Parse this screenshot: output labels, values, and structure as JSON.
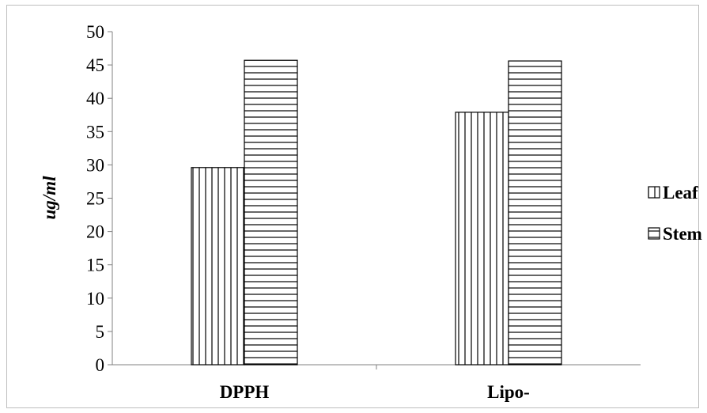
{
  "chart_data": {
    "type": "bar",
    "categories": [
      "DPPH",
      "Lipo-"
    ],
    "series": [
      {
        "name": "Leaf",
        "values": [
          29.6,
          37.9
        ],
        "pattern": "vertical-lines"
      },
      {
        "name": "Stem",
        "values": [
          45.7,
          45.6
        ],
        "pattern": "horizontal-lines"
      }
    ],
    "title": "",
    "xlabel": "",
    "ylabel": "ug/ml",
    "ylim": [
      0,
      50
    ],
    "yticks": [
      0,
      5,
      10,
      15,
      20,
      25,
      30,
      35,
      40,
      45,
      50
    ],
    "grid": false,
    "legend_position": "right",
    "colors": {
      "bar_fill": "#ffffff",
      "bar_stroke": "#000000",
      "axis": "#808080"
    }
  }
}
